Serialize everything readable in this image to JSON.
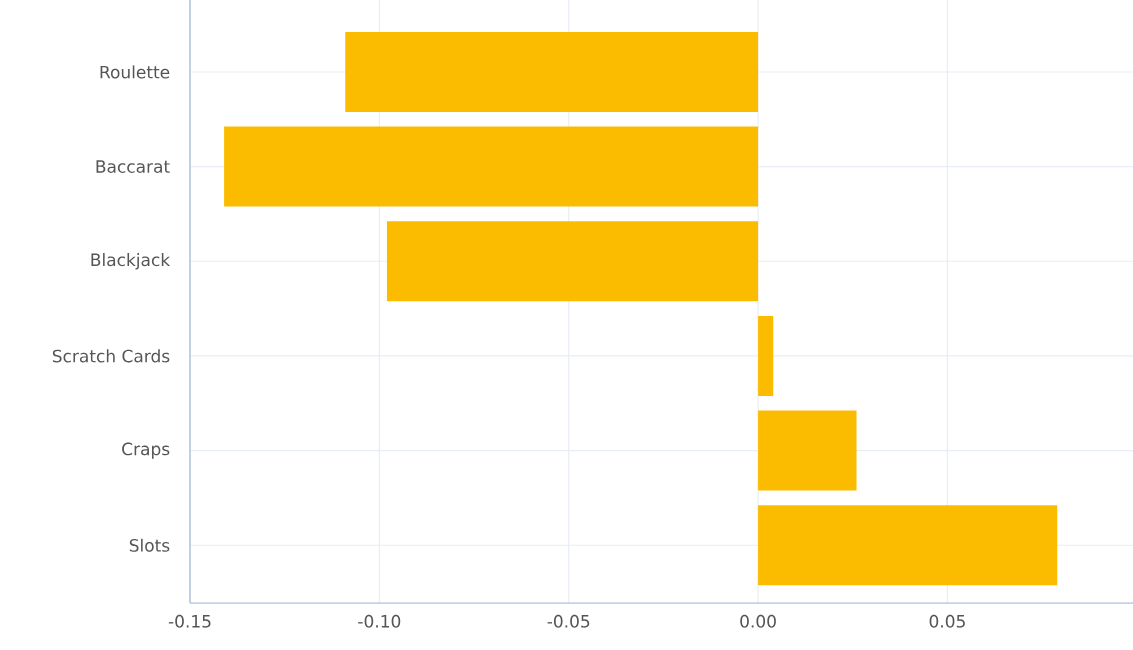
{
  "chart_data": {
    "type": "bar",
    "orientation": "horizontal",
    "categories": [
      "Roulette",
      "Baccarat",
      "Blackjack",
      "Scratch Cards",
      "Craps",
      "Slots"
    ],
    "values": [
      -0.109,
      -0.141,
      -0.098,
      0.004,
      0.026,
      0.079
    ],
    "color": "#fbbc00",
    "xlim": [
      -0.15,
      0.099
    ],
    "xticks": [
      -0.15,
      {
        "value": -0.1,
        "label": "-0.10"
      },
      -0.05,
      {
        "value": 0,
        "label": "0.00"
      },
      0.05
    ],
    "grid": true
  }
}
